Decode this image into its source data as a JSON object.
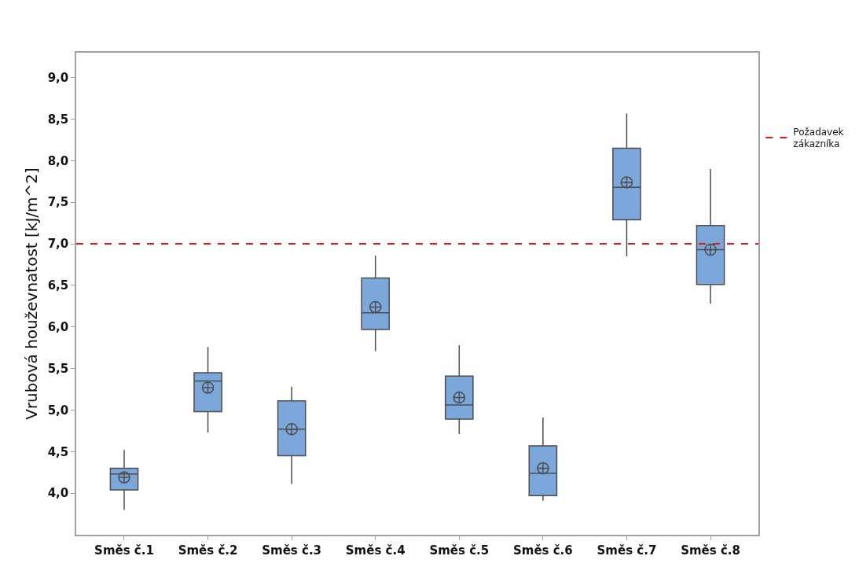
{
  "chart_data": {
    "type": "box",
    "ylabel": "Vrubová houževnatost [kJ/m^2]",
    "categories": [
      "Směs č.1",
      "Směs č.2",
      "Směs č.3",
      "Směs č.4",
      "Směs č.5",
      "Směs č.6",
      "Směs č.7",
      "Směs č.8"
    ],
    "boxes": [
      {
        "low": 3.8,
        "q1": 4.04,
        "median": 4.23,
        "q3": 4.3,
        "high": 4.52,
        "mean": 4.19
      },
      {
        "low": 4.73,
        "q1": 4.98,
        "median": 5.35,
        "q3": 5.45,
        "high": 5.76,
        "mean": 5.27
      },
      {
        "low": 4.11,
        "q1": 4.45,
        "median": 4.77,
        "q3": 5.11,
        "high": 5.28,
        "mean": 4.77
      },
      {
        "low": 5.71,
        "q1": 5.97,
        "median": 6.17,
        "q3": 6.59,
        "high": 6.86,
        "mean": 6.24
      },
      {
        "low": 4.71,
        "q1": 4.89,
        "median": 5.06,
        "q3": 5.41,
        "high": 5.78,
        "mean": 5.15
      },
      {
        "low": 3.91,
        "q1": 3.97,
        "median": 4.24,
        "q3": 4.57,
        "high": 4.91,
        "mean": 4.3
      },
      {
        "low": 6.85,
        "q1": 7.29,
        "median": 7.68,
        "q3": 8.15,
        "high": 8.57,
        "mean": 7.74
      },
      {
        "low": 6.28,
        "q1": 6.51,
        "median": 6.93,
        "q3": 7.22,
        "high": 7.9,
        "mean": 6.93
      }
    ],
    "color": "#7ba7da",
    "ylim": [
      3.5,
      9.3
    ],
    "yticks": [
      {
        "value": 4,
        "label": "4,0"
      },
      {
        "value": 4.5,
        "label": "4,5"
      },
      {
        "value": 5,
        "label": "5,0"
      },
      {
        "value": 5.5,
        "label": "5,5"
      },
      {
        "value": 6,
        "label": "6,0"
      },
      {
        "value": 6.5,
        "label": "6,5"
      },
      {
        "value": 7,
        "label": "7,0"
      },
      {
        "value": 7.5,
        "label": "7,5"
      },
      {
        "value": 8,
        "label": "8,0"
      },
      {
        "value": 8.5,
        "label": "8,5"
      },
      {
        "value": 9,
        "label": "9,0"
      }
    ],
    "ref_lines": [
      {
        "axis": "y",
        "value": 7,
        "label": "Požadavek zákazníka",
        "color": "#d7191c",
        "line_style": "dashed"
      }
    ],
    "grid": false,
    "legend": "right"
  }
}
